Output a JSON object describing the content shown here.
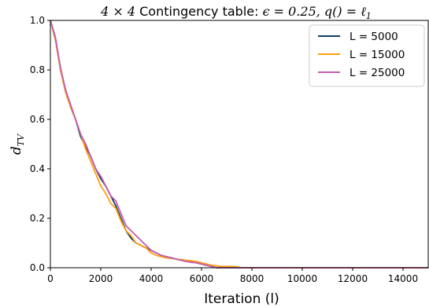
{
  "chart_data": {
    "type": "line",
    "title_text": "Contingency table: ",
    "title_prefix": "4 × 4 ",
    "title_math": "ϵ = 0.25, q() = ℓ",
    "title_math_sub": "1",
    "xlabel": "Iteration (l)",
    "ylabel": "d",
    "ylabel_sub": "TV",
    "xlim": [
      0,
      15000
    ],
    "ylim": [
      0,
      1.0
    ],
    "xticks": [
      0,
      2000,
      4000,
      6000,
      8000,
      10000,
      12000,
      14000
    ],
    "yticks": [
      0.0,
      0.2,
      0.4,
      0.6,
      0.8,
      1.0
    ],
    "ytick_labels": [
      "0.0",
      "0.2",
      "0.4",
      "0.6",
      "0.8",
      "1.0"
    ],
    "legend_position": "top-right",
    "series": [
      {
        "name": "L = 5000",
        "color": "#0e3d5c",
        "x": [
          0,
          200,
          400,
          600,
          800,
          1000,
          1200,
          1400,
          1600,
          1800,
          2000,
          2200,
          2400,
          2600,
          2800,
          3000,
          3200,
          3400,
          3600,
          3800,
          4000,
          4200,
          4400,
          4600,
          4800,
          5000,
          5200,
          5400,
          5600,
          5800,
          6000,
          6200,
          6400,
          6600,
          7000,
          8000,
          10000,
          12000,
          15000
        ],
        "y": [
          1.0,
          0.93,
          0.8,
          0.72,
          0.65,
          0.6,
          0.53,
          0.49,
          0.45,
          0.4,
          0.36,
          0.33,
          0.29,
          0.25,
          0.2,
          0.15,
          0.12,
          0.1,
          0.09,
          0.08,
          0.07,
          0.06,
          0.05,
          0.045,
          0.04,
          0.035,
          0.03,
          0.028,
          0.025,
          0.02,
          0.015,
          0.01,
          0.005,
          0.0,
          0.0,
          0.0,
          0.0,
          0.0,
          0.0
        ]
      },
      {
        "name": "L = 15000",
        "color": "#ff9f0a",
        "x": [
          0,
          200,
          400,
          600,
          800,
          1000,
          1200,
          1400,
          1600,
          1800,
          2000,
          2200,
          2400,
          2600,
          2800,
          3000,
          3200,
          3400,
          3600,
          3800,
          4000,
          4200,
          4400,
          4600,
          4800,
          5000,
          5200,
          5400,
          5600,
          5800,
          6000,
          6200,
          6400,
          6600,
          6800,
          7000,
          7200,
          7400,
          7600,
          8000,
          10000,
          12000,
          15000
        ],
        "y": [
          1.0,
          0.92,
          0.8,
          0.71,
          0.65,
          0.6,
          0.54,
          0.48,
          0.43,
          0.38,
          0.33,
          0.3,
          0.26,
          0.24,
          0.19,
          0.15,
          0.13,
          0.1,
          0.09,
          0.08,
          0.06,
          0.05,
          0.045,
          0.04,
          0.038,
          0.035,
          0.033,
          0.03,
          0.028,
          0.025,
          0.02,
          0.015,
          0.01,
          0.008,
          0.005,
          0.005,
          0.005,
          0.004,
          0.0,
          0.0,
          0.0,
          0.0,
          0.0
        ]
      },
      {
        "name": "L = 25000",
        "color": "#c55bb0",
        "x": [
          0,
          200,
          400,
          600,
          800,
          1000,
          1200,
          1400,
          1600,
          1800,
          2000,
          2200,
          2400,
          2600,
          2800,
          3000,
          3200,
          3400,
          3600,
          3800,
          4000,
          4200,
          4400,
          4600,
          4800,
          5000,
          5200,
          5400,
          5600,
          5800,
          6000,
          6200,
          6400,
          6600,
          7000,
          8000,
          10000,
          12000,
          15000
        ],
        "y": [
          1.0,
          0.93,
          0.81,
          0.72,
          0.66,
          0.6,
          0.54,
          0.5,
          0.45,
          0.4,
          0.37,
          0.33,
          0.29,
          0.27,
          0.22,
          0.17,
          0.15,
          0.13,
          0.11,
          0.09,
          0.07,
          0.06,
          0.05,
          0.045,
          0.04,
          0.035,
          0.03,
          0.025,
          0.022,
          0.02,
          0.015,
          0.01,
          0.005,
          0.0,
          0.0,
          0.0,
          0.0,
          0.0,
          0.0
        ]
      }
    ]
  }
}
